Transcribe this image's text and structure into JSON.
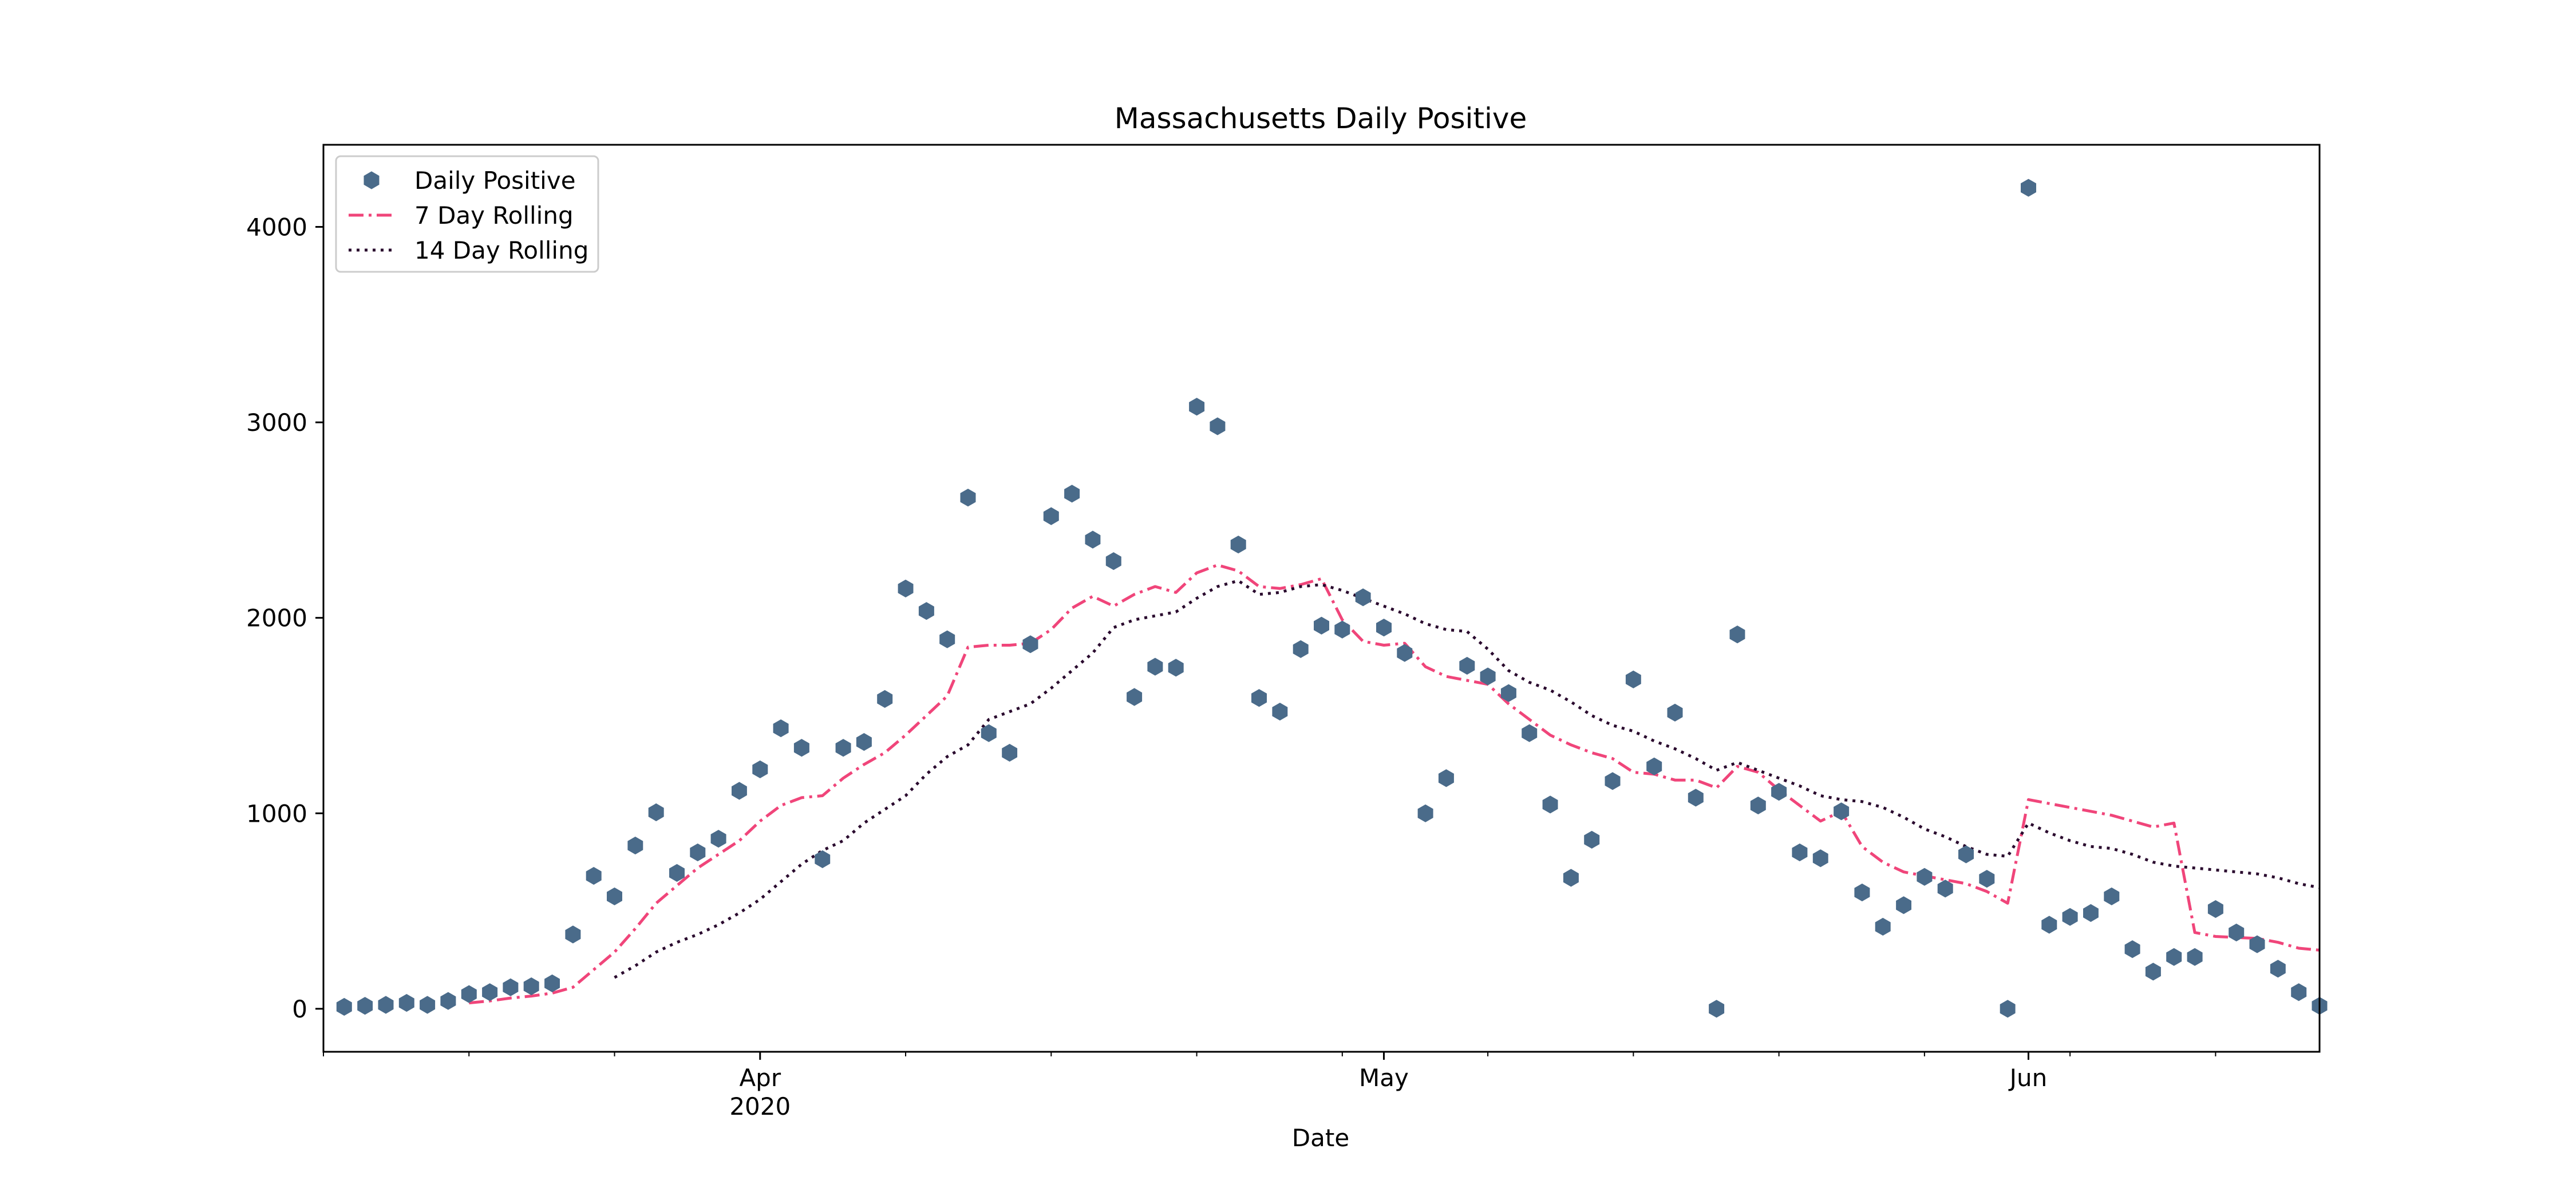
{
  "chart_data": {
    "type": "line",
    "title": "Massachusetts Daily Positive",
    "xlabel": "Date",
    "ylabel": "",
    "x_tick_labels": [
      {
        "date": "2020-04-01",
        "label": "Apr",
        "sublabel": "2020"
      },
      {
        "date": "2020-05-01",
        "label": "May",
        "sublabel": ""
      },
      {
        "date": "2020-06-01",
        "label": "Jun",
        "sublabel": ""
      }
    ],
    "y_ticks": [
      0,
      1000,
      2000,
      3000,
      4000
    ],
    "xlim": [
      "2020-03-11",
      "2020-06-15"
    ],
    "ylim": [
      -220,
      4420
    ],
    "legend_position": "top-left",
    "grid": false,
    "colors": {
      "daily": "#4a6b8a",
      "rolling7": "#f0457a",
      "rolling14": "#2a0a2e",
      "axes": "#000000"
    },
    "series": [
      {
        "name": "Daily Positive",
        "style": "hexagon-markers",
        "color": "#4a6b8a",
        "x": [
          "2020-03-12",
          "2020-03-13",
          "2020-03-14",
          "2020-03-15",
          "2020-03-16",
          "2020-03-17",
          "2020-03-18",
          "2020-03-19",
          "2020-03-20",
          "2020-03-21",
          "2020-03-22",
          "2020-03-23",
          "2020-03-24",
          "2020-03-25",
          "2020-03-26",
          "2020-03-27",
          "2020-03-28",
          "2020-03-29",
          "2020-03-30",
          "2020-03-31",
          "2020-04-01",
          "2020-04-02",
          "2020-04-03",
          "2020-04-04",
          "2020-04-05",
          "2020-04-06",
          "2020-04-07",
          "2020-04-08",
          "2020-04-09",
          "2020-04-10",
          "2020-04-11",
          "2020-04-12",
          "2020-04-13",
          "2020-04-14",
          "2020-04-15",
          "2020-04-16",
          "2020-04-17",
          "2020-04-18",
          "2020-04-19",
          "2020-04-20",
          "2020-04-21",
          "2020-04-22",
          "2020-04-23",
          "2020-04-24",
          "2020-04-25",
          "2020-04-26",
          "2020-04-27",
          "2020-04-28",
          "2020-04-29",
          "2020-04-30",
          "2020-05-01",
          "2020-05-02",
          "2020-05-03",
          "2020-05-04",
          "2020-05-05",
          "2020-05-06",
          "2020-05-07",
          "2020-05-08",
          "2020-05-09",
          "2020-05-10",
          "2020-05-11",
          "2020-05-12",
          "2020-05-13",
          "2020-05-14",
          "2020-05-15",
          "2020-05-16",
          "2020-05-17",
          "2020-05-18",
          "2020-05-19",
          "2020-05-20",
          "2020-05-21",
          "2020-05-22",
          "2020-05-23",
          "2020-05-24",
          "2020-05-25",
          "2020-05-26",
          "2020-05-27",
          "2020-05-28",
          "2020-05-29",
          "2020-05-30",
          "2020-05-31",
          "2020-06-01",
          "2020-06-02",
          "2020-06-03",
          "2020-06-04",
          "2020-06-05",
          "2020-06-06",
          "2020-06-07",
          "2020-06-08",
          "2020-06-09",
          "2020-06-10",
          "2020-06-11",
          "2020-06-12",
          "2020-06-13",
          "2020-06-14",
          "2020-06-15"
        ],
        "values": [
          10,
          15,
          20,
          30,
          20,
          40,
          75,
          85,
          110,
          115,
          130,
          380,
          680,
          575,
          835,
          1005,
          695,
          800,
          870,
          1115,
          1225,
          1435,
          1335,
          765,
          1335,
          1365,
          1585,
          2150,
          2035,
          1890,
          2615,
          1410,
          1310,
          1865,
          2520,
          2635,
          2400,
          2290,
          1595,
          1750,
          1745,
          3080,
          2980,
          2375,
          1590,
          1520,
          1840,
          1960,
          1940,
          2105,
          1950,
          1820,
          1000,
          1180,
          1755,
          1700,
          1615,
          1410,
          1045,
          670,
          865,
          1165,
          1685,
          1240,
          1515,
          1080,
          0,
          1915,
          1040,
          1110,
          800,
          770,
          1010,
          595,
          420,
          530,
          675,
          615,
          790,
          665,
          0,
          4200,
          430,
          470,
          490,
          575,
          305,
          190,
          265,
          265,
          510,
          390,
          330,
          205,
          85,
          15
        ]
      },
      {
        "name": "7 Day Rolling",
        "style": "dash-dot",
        "color": "#f0457a",
        "x": [
          "2020-03-18",
          "2020-03-19",
          "2020-03-20",
          "2020-03-21",
          "2020-03-22",
          "2020-03-23",
          "2020-03-24",
          "2020-03-25",
          "2020-03-26",
          "2020-03-27",
          "2020-03-28",
          "2020-03-29",
          "2020-03-30",
          "2020-03-31",
          "2020-04-01",
          "2020-04-02",
          "2020-04-03",
          "2020-04-04",
          "2020-04-05",
          "2020-04-06",
          "2020-04-07",
          "2020-04-08",
          "2020-04-09",
          "2020-04-10",
          "2020-04-11",
          "2020-04-12",
          "2020-04-13",
          "2020-04-14",
          "2020-04-15",
          "2020-04-16",
          "2020-04-17",
          "2020-04-18",
          "2020-04-19",
          "2020-04-20",
          "2020-04-21",
          "2020-04-22",
          "2020-04-23",
          "2020-04-24",
          "2020-04-25",
          "2020-04-26",
          "2020-04-27",
          "2020-04-28",
          "2020-04-29",
          "2020-04-30",
          "2020-05-01",
          "2020-05-02",
          "2020-05-03",
          "2020-05-04",
          "2020-05-05",
          "2020-05-06",
          "2020-05-07",
          "2020-05-08",
          "2020-05-09",
          "2020-05-10",
          "2020-05-11",
          "2020-05-12",
          "2020-05-13",
          "2020-05-14",
          "2020-05-15",
          "2020-05-16",
          "2020-05-17",
          "2020-05-18",
          "2020-05-19",
          "2020-05-20",
          "2020-05-21",
          "2020-05-22",
          "2020-05-23",
          "2020-05-24",
          "2020-05-25",
          "2020-05-26",
          "2020-05-27",
          "2020-05-28",
          "2020-05-29",
          "2020-05-30",
          "2020-05-31",
          "2020-06-01",
          "2020-06-02",
          "2020-06-03",
          "2020-06-04",
          "2020-06-05",
          "2020-06-06",
          "2020-06-07",
          "2020-06-08",
          "2020-06-09",
          "2020-06-10",
          "2020-06-11",
          "2020-06-12",
          "2020-06-13",
          "2020-06-14",
          "2020-06-15"
        ],
        "values": [
          30,
          40,
          55,
          65,
          80,
          110,
          200,
          290,
          410,
          540,
          630,
          720,
          790,
          860,
          960,
          1040,
          1080,
          1090,
          1180,
          1250,
          1310,
          1400,
          1500,
          1600,
          1850,
          1860,
          1860,
          1870,
          1940,
          2050,
          2110,
          2060,
          2120,
          2160,
          2130,
          2230,
          2270,
          2240,
          2160,
          2150,
          2170,
          2200,
          1990,
          1880,
          1860,
          1870,
          1750,
          1700,
          1680,
          1660,
          1560,
          1480,
          1400,
          1350,
          1310,
          1280,
          1210,
          1200,
          1170,
          1170,
          1130,
          1240,
          1210,
          1120,
          1040,
          960,
          1010,
          830,
          750,
          700,
          680,
          660,
          640,
          600,
          540,
          1070,
          1050,
          1030,
          1010,
          990,
          960,
          930,
          950,
          390,
          370,
          365,
          360,
          340,
          310,
          300
        ]
      },
      {
        "name": "14 Day Rolling",
        "style": "dotted",
        "color": "#2a0a2e",
        "x": [
          "2020-03-25",
          "2020-03-26",
          "2020-03-27",
          "2020-03-28",
          "2020-03-29",
          "2020-03-30",
          "2020-03-31",
          "2020-04-01",
          "2020-04-02",
          "2020-04-03",
          "2020-04-04",
          "2020-04-05",
          "2020-04-06",
          "2020-04-07",
          "2020-04-08",
          "2020-04-09",
          "2020-04-10",
          "2020-04-11",
          "2020-04-12",
          "2020-04-13",
          "2020-04-14",
          "2020-04-15",
          "2020-04-16",
          "2020-04-17",
          "2020-04-18",
          "2020-04-19",
          "2020-04-20",
          "2020-04-21",
          "2020-04-22",
          "2020-04-23",
          "2020-04-24",
          "2020-04-25",
          "2020-04-26",
          "2020-04-27",
          "2020-04-28",
          "2020-04-29",
          "2020-04-30",
          "2020-05-01",
          "2020-05-02",
          "2020-05-03",
          "2020-05-04",
          "2020-05-05",
          "2020-05-06",
          "2020-05-07",
          "2020-05-08",
          "2020-05-09",
          "2020-05-10",
          "2020-05-11",
          "2020-05-12",
          "2020-05-13",
          "2020-05-14",
          "2020-05-15",
          "2020-05-16",
          "2020-05-17",
          "2020-05-18",
          "2020-05-19",
          "2020-05-20",
          "2020-05-21",
          "2020-05-22",
          "2020-05-23",
          "2020-05-24",
          "2020-05-25",
          "2020-05-26",
          "2020-05-27",
          "2020-05-28",
          "2020-05-29",
          "2020-05-30",
          "2020-05-31",
          "2020-06-01",
          "2020-06-02",
          "2020-06-03",
          "2020-06-04",
          "2020-06-05",
          "2020-06-06",
          "2020-06-07",
          "2020-06-08",
          "2020-06-09",
          "2020-06-10",
          "2020-06-11",
          "2020-06-12",
          "2020-06-13",
          "2020-06-14",
          "2020-06-15"
        ],
        "values": [
          160,
          220,
          290,
          340,
          380,
          430,
          490,
          560,
          650,
          740,
          810,
          860,
          950,
          1020,
          1090,
          1200,
          1290,
          1350,
          1480,
          1520,
          1560,
          1640,
          1730,
          1820,
          1950,
          1990,
          2010,
          2030,
          2100,
          2160,
          2190,
          2120,
          2130,
          2160,
          2170,
          2140,
          2100,
          2060,
          2020,
          1970,
          1940,
          1930,
          1840,
          1730,
          1670,
          1630,
          1570,
          1500,
          1450,
          1420,
          1370,
          1330,
          1280,
          1220,
          1260,
          1220,
          1180,
          1140,
          1090,
          1070,
          1060,
          1030,
          980,
          920,
          880,
          830,
          790,
          780,
          950,
          900,
          860,
          830,
          820,
          790,
          750,
          730,
          720,
          710,
          700,
          690,
          670,
          640,
          620
        ]
      }
    ]
  }
}
